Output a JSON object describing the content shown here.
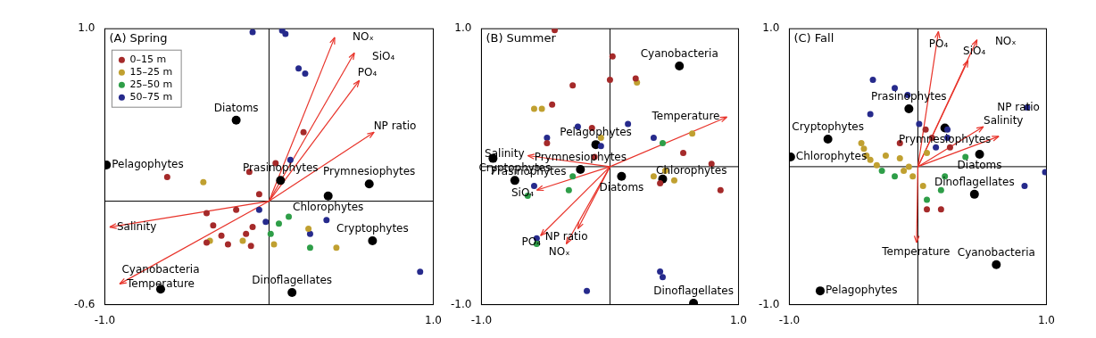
{
  "chart_data": [
    {
      "type": "scatter",
      "title": "(A) Spring",
      "xlim": [
        -1,
        1
      ],
      "ylim": [
        -0.6,
        1
      ],
      "xticks": [
        {
          "value": -1,
          "label": "-1.0"
        },
        {
          "value": 1,
          "label": "1.0"
        }
      ],
      "yticks": [
        -0.6,
        {
          "value": 1,
          "label": "1.0"
        }
      ],
      "grid": false,
      "legend": "upper left",
      "series": [
        {
          "name": "0–15 m",
          "color": "#a52a2a",
          "values": [
            [
              -0.62,
              0.14
            ],
            [
              -0.12,
              0.17
            ],
            [
              0.04,
              0.22
            ],
            [
              0.21,
              0.4
            ],
            [
              -0.38,
              -0.07
            ],
            [
              -0.34,
              -0.14
            ],
            [
              -0.29,
              -0.2
            ],
            [
              -0.25,
              -0.25
            ],
            [
              -0.2,
              -0.05
            ],
            [
              -0.14,
              -0.19
            ],
            [
              -0.1,
              -0.15
            ],
            [
              -0.38,
              -0.24
            ],
            [
              -0.11,
              -0.26
            ],
            [
              -0.06,
              0.04
            ]
          ]
        },
        {
          "name": "15–25 m",
          "color": "#c0a030",
          "values": [
            [
              -0.4,
              0.11
            ],
            [
              -0.36,
              -0.23
            ],
            [
              -0.16,
              -0.23
            ],
            [
              0.41,
              -0.27
            ],
            [
              0.03,
              -0.25
            ],
            [
              0.24,
              -0.16
            ]
          ]
        },
        {
          "name": "25–50 m",
          "color": "#2e9e48",
          "values": [
            [
              0.25,
              -0.27
            ],
            [
              0.12,
              -0.09
            ],
            [
              0.01,
              -0.19
            ],
            [
              0.06,
              -0.13
            ]
          ]
        },
        {
          "name": "50–75 m",
          "color": "#262a8c",
          "values": [
            [
              -0.1,
              0.98
            ],
            [
              0.08,
              0.99
            ],
            [
              0.1,
              0.97
            ],
            [
              0.18,
              0.77
            ],
            [
              0.22,
              0.74
            ],
            [
              0.13,
              0.24
            ],
            [
              0.92,
              -0.41
            ],
            [
              -0.06,
              -0.05
            ],
            [
              -0.02,
              -0.12
            ],
            [
              0.35,
              -0.11
            ],
            [
              0.25,
              -0.19
            ]
          ]
        }
      ],
      "taxa": {
        "color": "#000000",
        "points": [
          {
            "label": "Diatoms",
            "x": -0.2,
            "y": 0.47
          },
          {
            "label": "Pelagophytes",
            "x": -0.99,
            "y": 0.21
          },
          {
            "label": "Prasinophytes",
            "x": 0.07,
            "y": 0.12
          },
          {
            "label": "Prymnesiophytes",
            "x": 0.61,
            "y": 0.1
          },
          {
            "label": "Chlorophytes",
            "x": 0.36,
            "y": 0.03
          },
          {
            "label": "Cryptophytes",
            "x": 0.63,
            "y": -0.23
          },
          {
            "label": "Dinoflagellates",
            "x": 0.14,
            "y": -0.53
          },
          {
            "label": "Cyanobacteria",
            "x": -0.66,
            "y": -0.51
          }
        ]
      },
      "vectors": {
        "color": "#e8332a",
        "arrows": [
          {
            "label": "NOₓ",
            "x": 0.4,
            "y": 0.95
          },
          {
            "label": "SiO₄",
            "x": 0.52,
            "y": 0.86
          },
          {
            "label": "PO₄",
            "x": 0.55,
            "y": 0.7
          },
          {
            "label": "NP ratio",
            "x": 0.64,
            "y": 0.4
          },
          {
            "label": "Salinity",
            "x": -0.97,
            "y": -0.15
          },
          {
            "label": "Temperature",
            "x": -0.91,
            "y": -0.48
          }
        ]
      }
    },
    {
      "type": "scatter",
      "title": "(B) Summer",
      "xlim": [
        -1,
        1
      ],
      "ylim": [
        -1,
        1
      ],
      "xticks": [
        {
          "value": -1,
          "label": "-1.0"
        },
        {
          "value": 1,
          "label": "1.0"
        }
      ],
      "yticks": [
        {
          "value": -1,
          "label": "-1.0"
        },
        {
          "value": 1,
          "label": "1.0"
        }
      ],
      "grid": false,
      "legend": false,
      "series": [
        {
          "name": "0–15 m",
          "color": "#a52a2a",
          "values": [
            [
              -0.43,
              0.99
            ],
            [
              0.02,
              0.8
            ],
            [
              0.0,
              0.63
            ],
            [
              0.2,
              0.64
            ],
            [
              -0.29,
              0.59
            ],
            [
              -0.45,
              0.45
            ],
            [
              -0.14,
              0.28
            ],
            [
              -0.49,
              0.17
            ],
            [
              0.79,
              0.02
            ],
            [
              0.86,
              -0.17
            ],
            [
              0.57,
              0.1
            ],
            [
              0.39,
              -0.12
            ],
            [
              -0.12,
              0.07
            ]
          ]
        },
        {
          "name": "15–25 m",
          "color": "#c0a030",
          "values": [
            [
              -0.59,
              0.42
            ],
            [
              -0.53,
              0.42
            ],
            [
              -0.07,
              0.21
            ],
            [
              0.21,
              0.61
            ],
            [
              0.64,
              0.24
            ],
            [
              0.34,
              -0.07
            ],
            [
              0.5,
              -0.1
            ],
            [
              0.43,
              -0.03
            ]
          ]
        },
        {
          "name": "25–50 m",
          "color": "#2e9e48",
          "values": [
            [
              -0.57,
              -0.56
            ],
            [
              -0.64,
              -0.21
            ],
            [
              -0.29,
              -0.07
            ],
            [
              -0.32,
              -0.17
            ],
            [
              0.41,
              0.17
            ]
          ]
        },
        {
          "name": "50–75 m",
          "color": "#262a8c",
          "values": [
            [
              -0.25,
              0.29
            ],
            [
              -0.49,
              0.21
            ],
            [
              -0.07,
              0.15
            ],
            [
              -0.59,
              -0.14
            ],
            [
              0.39,
              -0.76
            ],
            [
              0.41,
              -0.8
            ],
            [
              -0.18,
              -0.9
            ],
            [
              -0.57,
              -0.52
            ],
            [
              0.14,
              0.31
            ],
            [
              0.34,
              0.21
            ]
          ]
        }
      ],
      "taxa": {
        "color": "#000000",
        "points": [
          {
            "label": "Cyanobacteria",
            "x": 0.54,
            "y": 0.73
          },
          {
            "label": "Pelagophytes",
            "x": -0.11,
            "y": 0.16
          },
          {
            "label": "Prymnesiophytes",
            "x": -0.23,
            "y": -0.02
          },
          {
            "label": "Prasinophytes",
            "x": -0.91,
            "y": 0.06
          },
          {
            "label": "Cryptophytes",
            "x": -0.74,
            "y": -0.1
          },
          {
            "label": "Diatoms",
            "x": 0.09,
            "y": -0.07
          },
          {
            "label": "Chlorophytes",
            "x": 0.41,
            "y": -0.09
          },
          {
            "label": "Dinoflagellates",
            "x": 0.65,
            "y": -0.99
          }
        ]
      },
      "vectors": {
        "color": "#e8332a",
        "arrows": [
          {
            "label": "Temperature",
            "x": 0.91,
            "y": 0.36
          },
          {
            "label": "Salinity",
            "x": -0.64,
            "y": 0.08
          },
          {
            "label": "SiO₄",
            "x": -0.57,
            "y": -0.17
          },
          {
            "label": "PO₄",
            "x": -0.54,
            "y": -0.5
          },
          {
            "label": "NP ratio",
            "x": -0.25,
            "y": -0.45
          },
          {
            "label": "NOₓ",
            "x": -0.34,
            "y": -0.56
          }
        ]
      }
    },
    {
      "type": "scatter",
      "title": "(C) Fall",
      "xlim": [
        -1,
        1
      ],
      "ylim": [
        -1,
        1
      ],
      "xticks": [
        {
          "value": -1,
          "label": "-1.0"
        },
        {
          "value": 1,
          "label": "1.0"
        }
      ],
      "yticks": [
        {
          "value": -1,
          "label": "-1.0"
        },
        {
          "value": 1,
          "label": "1.0"
        }
      ],
      "grid": false,
      "legend": false,
      "series": [
        {
          "name": "0–15 m",
          "color": "#a52a2a",
          "values": [
            [
              0.06,
              0.27
            ],
            [
              0.11,
              0.21
            ],
            [
              0.18,
              -0.31
            ],
            [
              0.07,
              -0.31
            ],
            [
              -0.14,
              0.17
            ],
            [
              0.25,
              0.14
            ]
          ]
        },
        {
          "name": "15–25 m",
          "color": "#c0a030",
          "values": [
            [
              -0.44,
              0.17
            ],
            [
              -0.42,
              0.13
            ],
            [
              -0.4,
              0.08
            ],
            [
              -0.37,
              0.05
            ],
            [
              -0.32,
              0.01
            ],
            [
              -0.25,
              0.08
            ],
            [
              -0.14,
              0.06
            ],
            [
              -0.07,
              0.0
            ],
            [
              -0.04,
              -0.07
            ],
            [
              -0.11,
              -0.03
            ],
            [
              0.07,
              0.1
            ],
            [
              0.04,
              -0.14
            ]
          ]
        },
        {
          "name": "25–50 m",
          "color": "#2e9e48",
          "values": [
            [
              -0.28,
              -0.03
            ],
            [
              -0.18,
              -0.07
            ],
            [
              0.07,
              -0.24
            ],
            [
              0.18,
              -0.17
            ],
            [
              0.37,
              0.07
            ],
            [
              0.21,
              -0.07
            ]
          ]
        },
        {
          "name": "50–75 m",
          "color": "#262a8c",
          "values": [
            [
              -0.35,
              0.63
            ],
            [
              -0.18,
              0.57
            ],
            [
              -0.37,
              0.38
            ],
            [
              -0.08,
              0.52
            ],
            [
              0.01,
              0.31
            ],
            [
              0.23,
              0.27
            ],
            [
              0.85,
              0.43
            ],
            [
              0.99,
              -0.04
            ],
            [
              0.83,
              -0.14
            ],
            [
              0.23,
              0.21
            ],
            [
              0.14,
              0.14
            ]
          ]
        }
      ],
      "taxa": {
        "color": "#000000",
        "points": [
          {
            "label": "Cryptophytes",
            "x": -0.7,
            "y": 0.2
          },
          {
            "label": "Chlorophytes",
            "x": -0.99,
            "y": 0.07
          },
          {
            "label": "Prasinophytes",
            "x": -0.07,
            "y": 0.42
          },
          {
            "label": "Prymnesiophytes",
            "x": 0.21,
            "y": 0.28
          },
          {
            "label": "Diatoms",
            "x": 0.48,
            "y": 0.09
          },
          {
            "label": "Dinoflagellates",
            "x": 0.44,
            "y": -0.2
          },
          {
            "label": "Pelagophytes",
            "x": -0.76,
            "y": -0.9
          },
          {
            "label": "Cyanobacteria",
            "x": 0.61,
            "y": -0.71
          }
        ]
      },
      "vectors": {
        "color": "#e8332a",
        "arrows": [
          {
            "label": "PO₄",
            "x": 0.16,
            "y": 0.98
          },
          {
            "label": "NOₓ",
            "x": 0.46,
            "y": 0.92
          },
          {
            "label": "SiO₄",
            "x": 0.39,
            "y": 0.77
          },
          {
            "label": "Salinity",
            "x": 0.51,
            "y": 0.29
          },
          {
            "label": "NP ratio",
            "x": 0.63,
            "y": 0.22
          },
          {
            "label": "Temperature",
            "x": -0.01,
            "y": -0.55
          }
        ]
      }
    }
  ]
}
